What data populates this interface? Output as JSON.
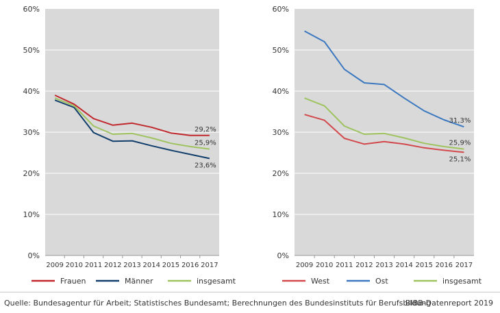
{
  "chart_data": [
    {
      "type": "line",
      "x": [
        2009,
        2010,
        2011,
        2012,
        2013,
        2014,
        2015,
        2016,
        2017
      ],
      "ylim": [
        0,
        60
      ],
      "yticks": [
        "0%",
        "10%",
        "20%",
        "30%",
        "40%",
        "50%",
        "60%"
      ],
      "grid": true,
      "legend_position": "bottom",
      "series": [
        {
          "name": "Frauen",
          "color": "#c0282d",
          "values": [
            39.0,
            36.8,
            33.3,
            31.7,
            32.2,
            31.2,
            29.8,
            29.2,
            29.2
          ],
          "end_label": "29,2%"
        },
        {
          "name": "Männer",
          "color": "#123e6b",
          "values": [
            37.8,
            36.0,
            29.9,
            27.8,
            27.9,
            26.7,
            25.6,
            24.6,
            23.6
          ],
          "end_label": "23,6%"
        },
        {
          "name": "insgesamt",
          "color": "#9ec35f",
          "values": [
            38.3,
            36.4,
            31.5,
            29.5,
            29.7,
            28.6,
            27.3,
            26.5,
            25.9
          ],
          "end_label": "25,9%"
        }
      ]
    },
    {
      "type": "line",
      "x": [
        2009,
        2010,
        2011,
        2012,
        2013,
        2014,
        2015,
        2016,
        2017
      ],
      "ylim": [
        0,
        60
      ],
      "yticks": [
        "0%",
        "10%",
        "20%",
        "30%",
        "40%",
        "50%",
        "60%"
      ],
      "grid": true,
      "legend_position": "bottom",
      "series": [
        {
          "name": "West",
          "color": "#d2484b",
          "values": [
            34.3,
            32.9,
            28.5,
            27.1,
            27.7,
            27.1,
            26.2,
            25.6,
            25.1
          ],
          "end_label": "25,1%"
        },
        {
          "name": "Ost",
          "color": "#3b78bf",
          "values": [
            54.6,
            52.0,
            45.3,
            42.0,
            41.6,
            38.3,
            35.2,
            33.0,
            31.3
          ],
          "end_label": "31,3%"
        },
        {
          "name": "insgesamt",
          "color": "#9ec35f",
          "values": [
            38.3,
            36.4,
            31.5,
            29.5,
            29.7,
            28.6,
            27.3,
            26.5,
            25.9
          ],
          "end_label": "25,9%"
        }
      ]
    }
  ],
  "footer": {
    "source": "Quelle: Bundesagentur für Arbeit; Statistisches Bundesamt; Berechnungen des Bundesinstituts für Berufsbildung",
    "publisher": "BIBB-Datenreport 2019"
  }
}
